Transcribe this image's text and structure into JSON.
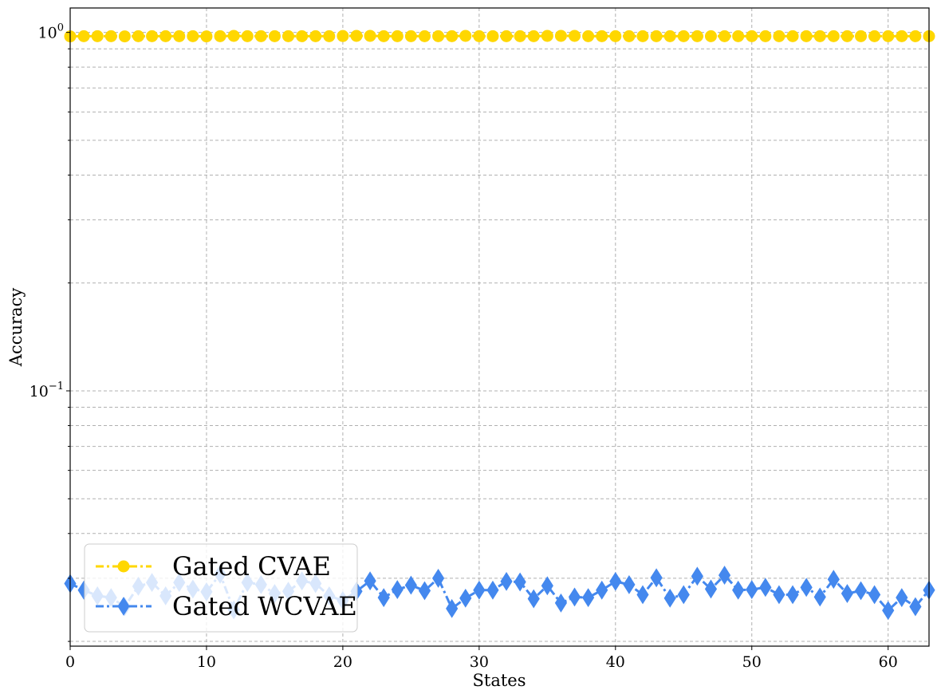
{
  "chart_data": {
    "type": "line",
    "xlabel": "States",
    "ylabel": "Accuracy",
    "xlim": [
      0,
      63
    ],
    "ylim": [
      0.0194,
      1.17
    ],
    "yscale": "log",
    "grid": true,
    "legend_position": "lower-left",
    "x_ticks": [
      {
        "value": 0,
        "label": "0"
      },
      {
        "value": 10,
        "label": "10"
      },
      {
        "value": 20,
        "label": "20"
      },
      {
        "value": 30,
        "label": "30"
      },
      {
        "value": 40,
        "label": "40"
      },
      {
        "value": 50,
        "label": "50"
      },
      {
        "value": 60,
        "label": "60"
      }
    ],
    "y_ticks": [
      {
        "value": 1,
        "base": "10",
        "exp": "0"
      },
      {
        "value": 0.1,
        "base": "10",
        "exp": "−1"
      }
    ],
    "series": [
      {
        "name": "Gated CVAE",
        "color": "#FFD700",
        "marker": "circle",
        "line_style": "dash-dot",
        "values": [
          0.975,
          0.976,
          0.976,
          0.976,
          0.975,
          0.976,
          0.976,
          0.976,
          0.976,
          0.976,
          0.975,
          0.976,
          0.978,
          0.976,
          0.976,
          0.976,
          0.976,
          0.976,
          0.976,
          0.976,
          0.977,
          0.978,
          0.978,
          0.976,
          0.976,
          0.976,
          0.976,
          0.976,
          0.976,
          0.978,
          0.976,
          0.976,
          0.976,
          0.976,
          0.976,
          0.978,
          0.978,
          0.978,
          0.976,
          0.976,
          0.976,
          0.976,
          0.976,
          0.976,
          0.976,
          0.976,
          0.976,
          0.976,
          0.976,
          0.976,
          0.976,
          0.976,
          0.976,
          0.976,
          0.976,
          0.976,
          0.976,
          0.976,
          0.976,
          0.976,
          0.976,
          0.976,
          0.976,
          0.976
        ]
      },
      {
        "name": "Gated WCVAE",
        "color": "#4488EE",
        "marker": "diamond",
        "line_style": "dash-dot",
        "values": [
          0.029,
          0.0278,
          0.0268,
          0.0265,
          0.025,
          0.0285,
          0.0292,
          0.0268,
          0.0292,
          0.028,
          0.0275,
          0.0308,
          0.0245,
          0.0292,
          0.0288,
          0.0272,
          0.0276,
          0.0295,
          0.029,
          0.0268,
          0.026,
          0.0276,
          0.0295,
          0.0265,
          0.0279,
          0.0287,
          0.0277,
          0.03,
          0.0247,
          0.0264,
          0.0278,
          0.0278,
          0.0294,
          0.0293,
          0.0263,
          0.0286,
          0.0256,
          0.0266,
          0.0265,
          0.0278,
          0.0294,
          0.0288,
          0.027,
          0.0301,
          0.0264,
          0.027,
          0.0304,
          0.028,
          0.0306,
          0.0278,
          0.0279,
          0.0283,
          0.027,
          0.027,
          0.0283,
          0.0266,
          0.0298,
          0.0272,
          0.0277,
          0.027,
          0.0244,
          0.0265,
          0.025,
          0.0278
        ]
      }
    ]
  }
}
